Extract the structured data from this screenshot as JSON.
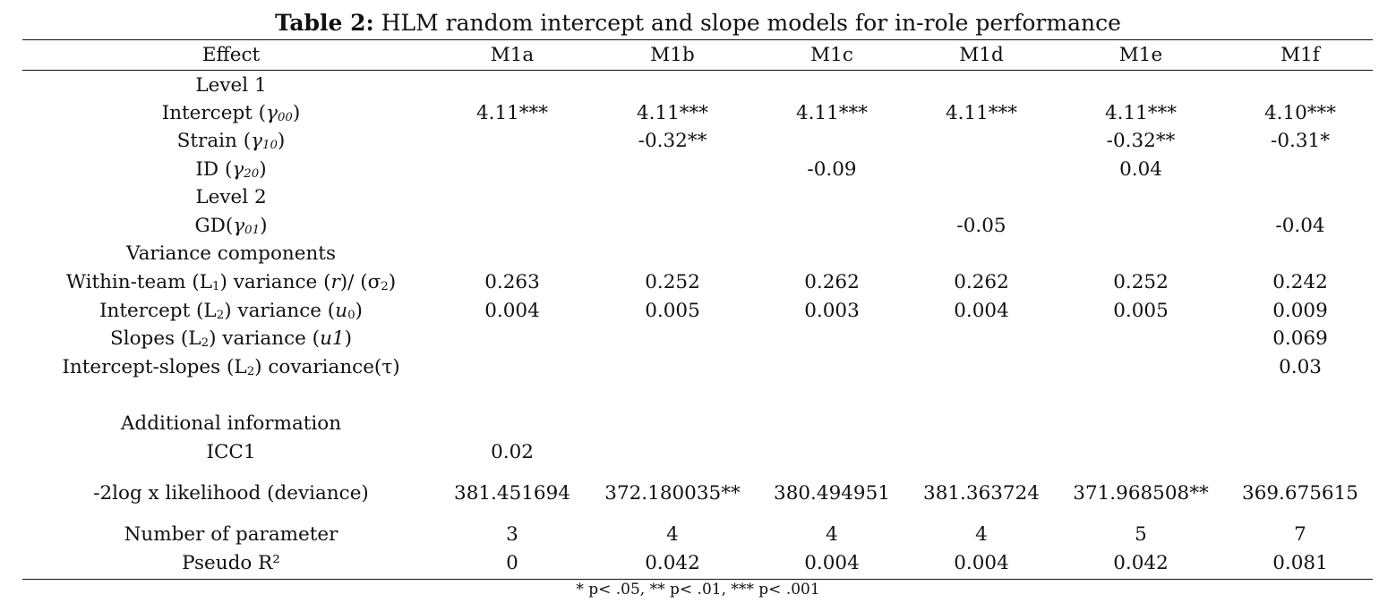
{
  "title": {
    "bold": "Table 2:",
    "text": "HLM random intercept and slope models for in-role performance"
  },
  "table": {
    "headers": [
      "Effect",
      "M1a",
      "M1b",
      "M1c",
      "M1d",
      "M1e",
      "M1f"
    ],
    "rows": [
      {
        "effect": "Level 1",
        "values": [
          "",
          "",
          "",
          "",
          "",
          ""
        ]
      },
      {
        "effect": "Intercept (γ00)",
        "values": [
          "4.11***",
          "4.11***",
          "4.11***",
          "4.11***",
          "4.11***",
          "4.10***"
        ]
      },
      {
        "effect": "Strain (γ10)",
        "values": [
          "",
          "-0.32**",
          "",
          "",
          "-0.32**",
          "-0.31*"
        ]
      },
      {
        "effect": "ID (γ20)",
        "values": [
          "",
          "",
          "-0.09",
          "",
          "0.04",
          ""
        ]
      },
      {
        "effect": "Level 2",
        "values": [
          "",
          "",
          "",
          "",
          "",
          ""
        ]
      },
      {
        "effect": "GD(γ01)",
        "values": [
          "",
          "",
          "",
          "-0.05",
          "",
          "-0.04"
        ]
      },
      {
        "effect": "Variance components",
        "values": [
          "",
          "",
          "",
          "",
          "",
          ""
        ]
      },
      {
        "effect": "Within-team (L1) variance (r)/ (σ2)",
        "values": [
          "0.263",
          "0.252",
          "0.262",
          "0.262",
          "0.252",
          "0.242"
        ]
      },
      {
        "effect": "Intercept (L2) variance (u0)",
        "values": [
          "0.004",
          "0.005",
          "0.003",
          "0.004",
          "0.005",
          "0.009"
        ]
      },
      {
        "effect": "Slopes (L2) variance (u1)",
        "values": [
          "",
          "",
          "",
          "",
          "",
          "0.069"
        ]
      },
      {
        "effect": "Intercept-slopes (L2) covariance(τ)",
        "values": [
          "",
          "",
          "",
          "",
          "",
          "0.03"
        ]
      },
      {
        "effect": "Additional information",
        "values": [
          "",
          "",
          "",
          "",
          "",
          ""
        ]
      },
      {
        "effect": "ICC1",
        "values": [
          "0.02",
          "",
          "",
          "",
          "",
          ""
        ]
      },
      {
        "effect": "-2log x likelihood (deviance)",
        "values": [
          "381.451694",
          "372.180035**",
          "380.494951",
          "381.363724",
          "371.968508**",
          "369.675615"
        ]
      },
      {
        "effect": "Number of parameter",
        "values": [
          "3",
          "4",
          "4",
          "4",
          "5",
          "7"
        ]
      },
      {
        "effect": "Pseudo R²",
        "values": [
          "0",
          "0.042",
          "0.004",
          "0.004",
          "0.042",
          "0.081"
        ]
      }
    ]
  },
  "footnote": "* p< .05, ** p< .01, *** p< .001"
}
